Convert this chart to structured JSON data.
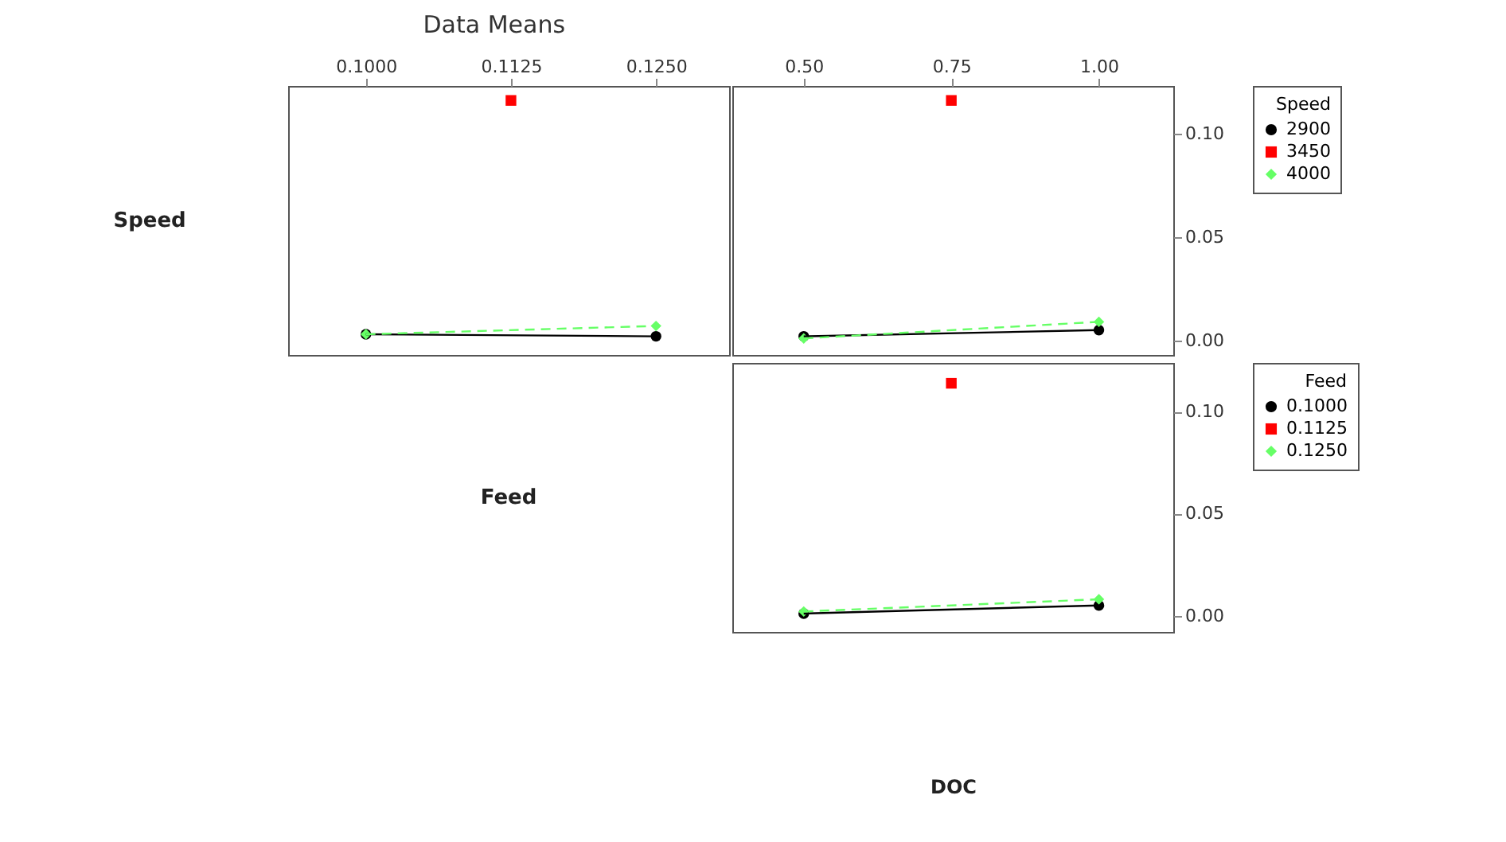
{
  "chart_data": [
    {
      "type": "line",
      "title": "Data Means",
      "ylabel": "Speed",
      "xlim": [
        0.0933,
        0.1313
      ],
      "xticks": [
        {
          "value": 0.1,
          "label": "0.1000"
        },
        {
          "value": 0.1125,
          "label": "0.1125"
        },
        {
          "value": 0.125,
          "label": "0.1250"
        }
      ],
      "ylim": [
        -0.007,
        0.123
      ],
      "tick_labels": "x",
      "legend": "right",
      "legend_title": "Speed",
      "grid": false,
      "series": [
        {
          "name": "2900",
          "color": "#000000",
          "marker": "circle",
          "line_style": "solid",
          "x": [
            0.1,
            0.125
          ],
          "values": [
            0.003,
            0.002
          ]
        },
        {
          "name": "3450",
          "color": "#ff0000",
          "marker": "square",
          "line_style": "solid",
          "x": [
            0.1125
          ],
          "values": [
            0.116
          ]
        },
        {
          "name": "4000",
          "color": "#66ff66",
          "marker": "diamond",
          "line_style": "dashed",
          "x": [
            0.1,
            0.125
          ],
          "values": [
            0.003,
            0.007
          ]
        }
      ]
    },
    {
      "type": "line",
      "xlim": [
        0.379,
        1.126
      ],
      "xticks": [
        {
          "value": 0.5,
          "label": "0.50"
        },
        {
          "value": 0.75,
          "label": "0.75"
        },
        {
          "value": 1.0,
          "label": "1.00"
        }
      ],
      "ylim": [
        -0.007,
        0.123
      ],
      "yticks": [
        {
          "value": 0,
          "label": "0.00"
        },
        {
          "value": 0.05,
          "label": "0.05"
        },
        {
          "value": 0.1,
          "label": "0.10"
        }
      ],
      "legend": "right",
      "grid": false,
      "series": [
        {
          "name": "2900",
          "color": "#000000",
          "marker": "circle",
          "line_style": "solid",
          "x": [
            0.5,
            1.0
          ],
          "values": [
            0.002,
            0.005
          ]
        },
        {
          "name": "3450",
          "color": "#ff0000",
          "marker": "square",
          "line_style": "solid",
          "x": [
            0.75
          ],
          "values": [
            0.116
          ]
        },
        {
          "name": "4000",
          "color": "#66ff66",
          "marker": "diamond",
          "line_style": "dashed",
          "x": [
            0.5,
            1.0
          ],
          "values": [
            0.001,
            0.009
          ]
        }
      ]
    },
    {
      "type": "line",
      "legend_title": "Feed",
      "ylabel": "Feed",
      "xlabel": "DOC",
      "xlim": [
        0.379,
        1.126
      ],
      "ylim": [
        -0.008,
        0.124
      ],
      "yticks": [
        {
          "value": 0,
          "label": "0.00"
        },
        {
          "value": 0.05,
          "label": "0.05"
        },
        {
          "value": 0.1,
          "label": "0.10"
        }
      ],
      "tick_labels": "y",
      "legend": "right",
      "grid": false,
      "series": [
        {
          "name": "0.1000",
          "color": "#000000",
          "marker": "circle",
          "line_style": "solid",
          "x": [
            0.5,
            1.0
          ],
          "values": [
            0.001,
            0.005
          ]
        },
        {
          "name": "0.1125",
          "color": "#ff0000",
          "marker": "square",
          "line_style": "solid",
          "x": [
            0.75
          ],
          "values": [
            0.114
          ]
        },
        {
          "name": "0.1250",
          "color": "#66ff66",
          "marker": "diamond",
          "line_style": "dashed",
          "x": [
            0.5,
            1.0
          ],
          "values": [
            0.002,
            0.008
          ]
        }
      ]
    }
  ]
}
